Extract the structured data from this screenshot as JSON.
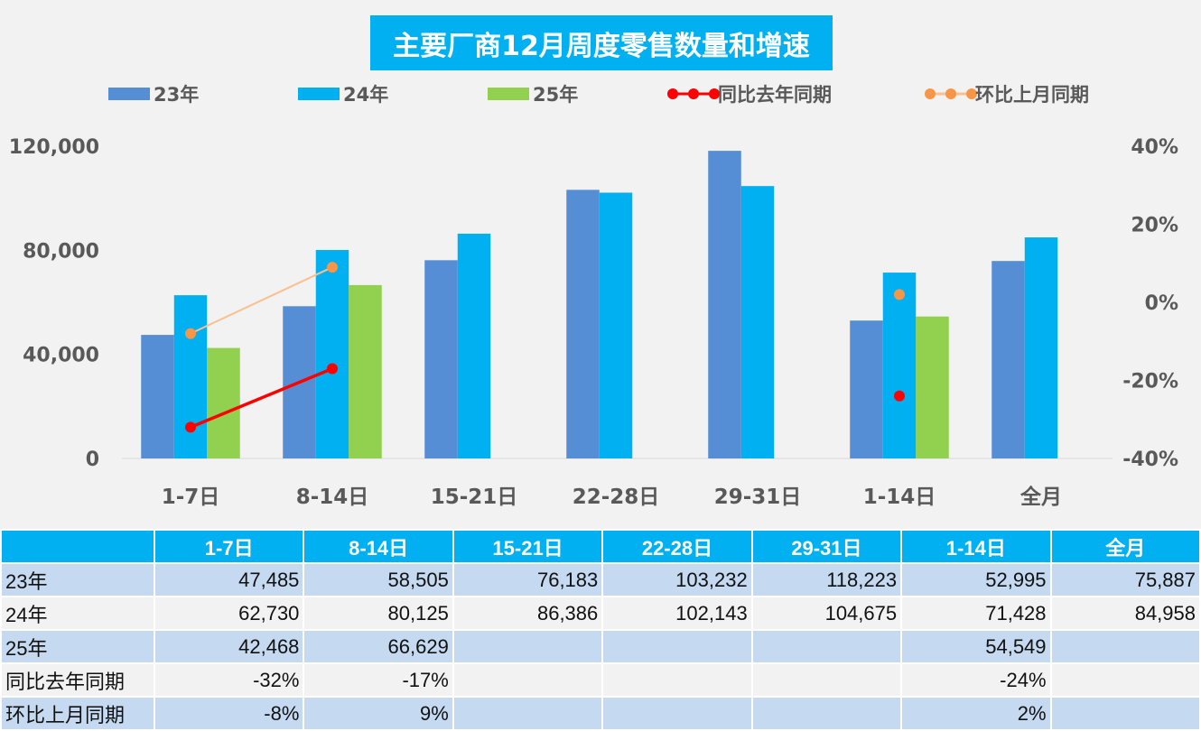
{
  "chart_data": {
    "type": "bar",
    "title": "主要厂商12月周度零售数量和增速",
    "categories": [
      "1-7日",
      "8-14日",
      "15-21日",
      "22-28日",
      "29-31日",
      "1-14日",
      "全月"
    ],
    "series": [
      {
        "name": "23年",
        "type": "bar",
        "color": "#558ed5",
        "values": [
          47485,
          58505,
          76183,
          103232,
          118223,
          52995,
          75887
        ]
      },
      {
        "name": "24年",
        "type": "bar",
        "color": "#00b0f0",
        "values": [
          62730,
          80125,
          86386,
          102143,
          104675,
          71428,
          84958
        ]
      },
      {
        "name": "25年",
        "type": "bar",
        "color": "#92d050",
        "values": [
          42468,
          66629,
          null,
          null,
          null,
          54549,
          null
        ]
      },
      {
        "name": "同比去年同期",
        "type": "line",
        "axis": "right",
        "color": "#ff0000",
        "values": [
          -32,
          -17,
          null,
          null,
          null,
          -24,
          null
        ]
      },
      {
        "name": "环比上月同期",
        "type": "line",
        "axis": "right",
        "color": "#fac090",
        "marker_color": "#f79646",
        "values": [
          -8,
          9,
          null,
          null,
          null,
          2,
          null
        ]
      }
    ],
    "ylim": [
      0,
      120000
    ],
    "y_ticks": [
      "0",
      "40,000",
      "80,000",
      "120,000"
    ],
    "y2lim": [
      -40,
      40
    ],
    "y2_ticks": [
      "-40%",
      "-20%",
      "0%",
      "20%",
      "40%"
    ],
    "legend": "top"
  },
  "table": {
    "headers": [
      "",
      "1-7日",
      "8-14日",
      "15-21日",
      "22-28日",
      "29-31日",
      "1-14日",
      "全月"
    ],
    "rows": [
      [
        "23年",
        "47,485",
        "58,505",
        "76,183",
        "103,232",
        "118,223",
        "52,995",
        "75,887"
      ],
      [
        "24年",
        "62,730",
        "80,125",
        "86,386",
        "102,143",
        "104,675",
        "71,428",
        "84,958"
      ],
      [
        "25年",
        "42,468",
        "66,629",
        "",
        "",
        "",
        "54,549",
        ""
      ],
      [
        "同比去年同期",
        "-32%",
        "-17%",
        "",
        "",
        "",
        "-24%",
        ""
      ],
      [
        "环比上月同期",
        "-8%",
        "9%",
        "",
        "",
        "",
        "2%",
        ""
      ]
    ]
  }
}
